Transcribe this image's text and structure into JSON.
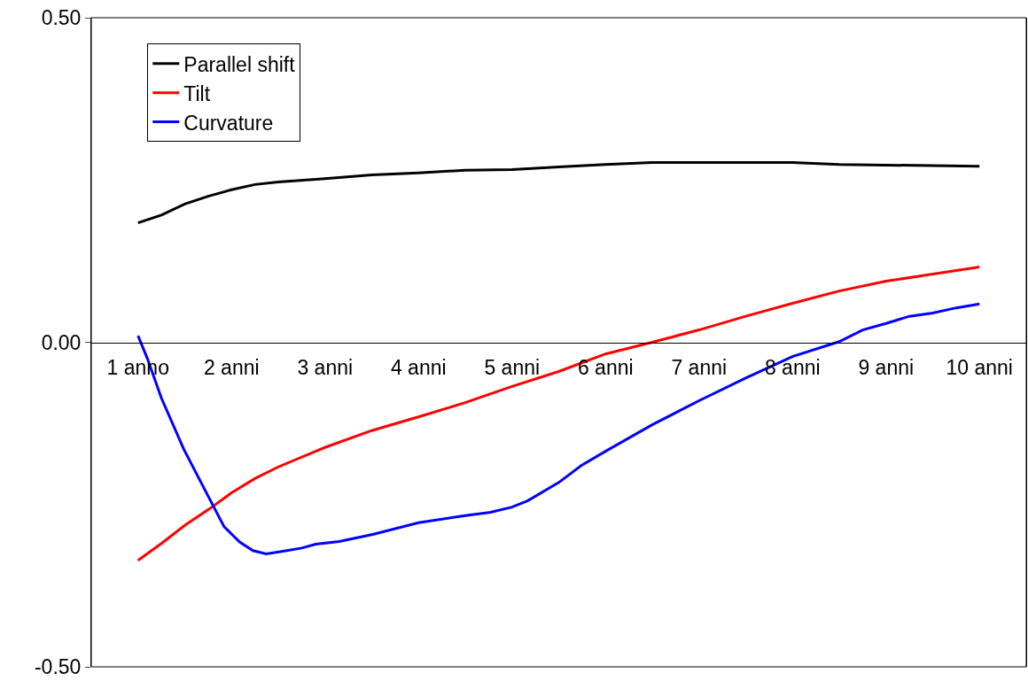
{
  "chart_data": {
    "type": "line",
    "xlim": [
      0.5,
      10.5
    ],
    "xticks": [
      {
        "value": 1,
        "label": "1 anno"
      },
      {
        "value": 2,
        "label": "2 anni"
      },
      {
        "value": 3,
        "label": "3 anni"
      },
      {
        "value": 4,
        "label": "4 anni"
      },
      {
        "value": 5,
        "label": "5 anni"
      },
      {
        "value": 6,
        "label": "6 anni"
      },
      {
        "value": 7,
        "label": "7 anni"
      },
      {
        "value": 8,
        "label": "8 anni"
      },
      {
        "value": 9,
        "label": "9 anni"
      },
      {
        "value": 10,
        "label": "10 anni"
      }
    ],
    "ylim": [
      -0.5,
      0.5
    ],
    "yticks": [
      {
        "value": -0.5,
        "label": "-0.50"
      },
      {
        "value": 0,
        "label": "0.00"
      },
      {
        "value": 0.5,
        "label": "0.50"
      }
    ],
    "grid": false,
    "legend": "top left",
    "marker": "none",
    "line_style": "solid",
    "series": [
      {
        "name": "Parallel shift",
        "color": "#000000",
        "x": [
          1,
          1.25,
          1.5,
          1.75,
          2,
          2.25,
          2.5,
          3,
          3.5,
          4,
          4.5,
          5,
          5.5,
          6,
          6.5,
          7,
          8,
          8.5,
          9,
          10
        ],
        "values": [
          0.184,
          0.196,
          0.213,
          0.225,
          0.235,
          0.243,
          0.247,
          0.252,
          0.258,
          0.261,
          0.265,
          0.266,
          0.27,
          0.274,
          0.277,
          0.277,
          0.277,
          0.274,
          0.273,
          0.271
        ]
      },
      {
        "name": "Tilt",
        "color": "#ff0000",
        "x": [
          1,
          1.25,
          1.5,
          1.75,
          2,
          2.25,
          2.5,
          3,
          3.5,
          4,
          4.5,
          5,
          5.5,
          6,
          6.5,
          7,
          7.5,
          8,
          8.5,
          9,
          9.5,
          10
        ],
        "values": [
          -0.336,
          -0.31,
          -0.282,
          -0.258,
          -0.232,
          -0.21,
          -0.192,
          -0.162,
          -0.136,
          -0.115,
          -0.093,
          -0.068,
          -0.045,
          -0.018,
          0.0,
          0.019,
          0.04,
          0.06,
          0.079,
          0.094,
          0.105,
          0.116
        ]
      },
      {
        "name": "Curvature",
        "color": "#0000ff",
        "x": [
          1,
          1.1,
          1.25,
          1.49,
          1.71,
          1.92,
          2.09,
          2.23,
          2.37,
          2.55,
          2.75,
          2.9,
          3.15,
          3.51,
          4,
          4.5,
          4.77,
          5,
          5.17,
          5.5,
          5.74,
          6,
          6.5,
          7,
          7.5,
          8,
          8.5,
          8.75,
          9,
          9.25,
          9.5,
          9.75,
          10
        ],
        "values": [
          0.01,
          -0.025,
          -0.086,
          -0.165,
          -0.226,
          -0.284,
          -0.308,
          -0.321,
          -0.326,
          -0.322,
          -0.317,
          -0.311,
          -0.307,
          -0.296,
          -0.278,
          -0.267,
          -0.262,
          -0.254,
          -0.244,
          -0.216,
          -0.19,
          -0.168,
          -0.127,
          -0.09,
          -0.055,
          -0.022,
          0.001,
          0.019,
          0.029,
          0.04,
          0.045,
          0.053,
          0.059
        ]
      }
    ]
  }
}
